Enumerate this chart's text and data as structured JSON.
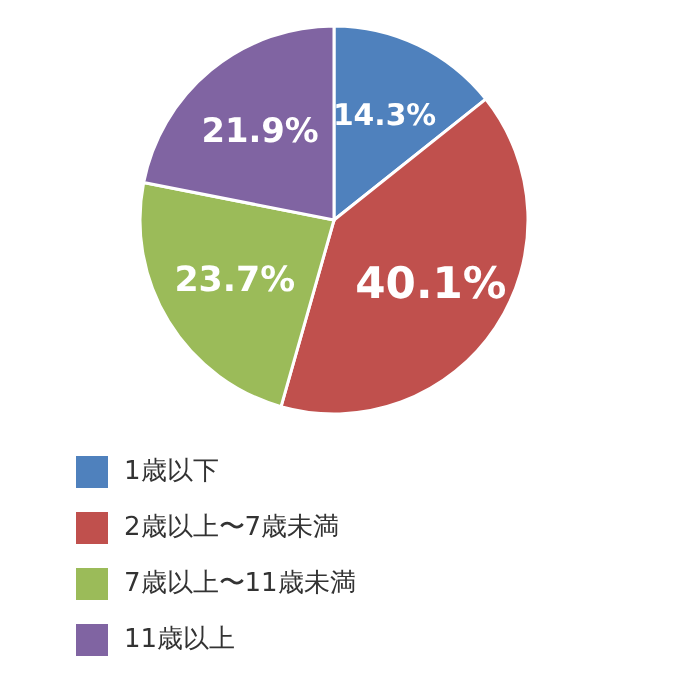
{
  "chart_data": {
    "type": "pie",
    "categories": [
      "1歳以下",
      "2歳以上〜7歳未満",
      "7歳以上〜11歳未満",
      "11歳以上"
    ],
    "values": [
      14.3,
      40.1,
      23.7,
      21.9
    ],
    "colors": [
      "#4f81bd",
      "#c0504d",
      "#9bbb59",
      "#8064a2"
    ],
    "value_labels": [
      "14.3%",
      "40.1%",
      "23.7%",
      "21.9%"
    ],
    "legend": "bottom"
  }
}
